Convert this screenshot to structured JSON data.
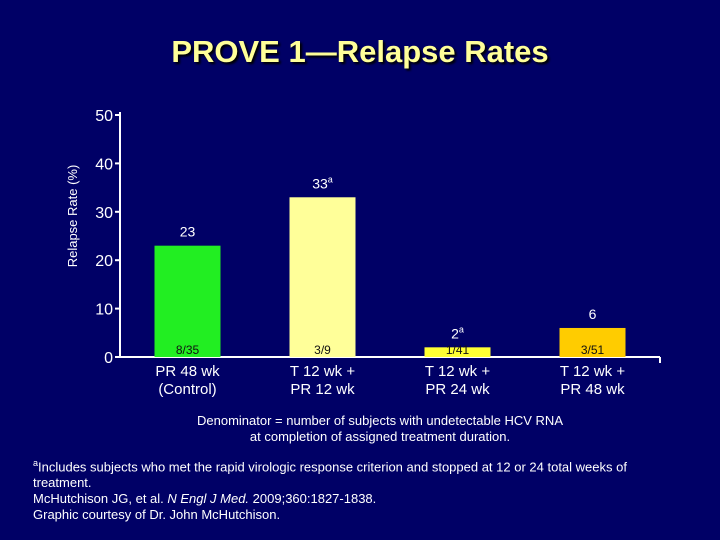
{
  "slide": {
    "title": "PROVE 1—Relapse Rates"
  },
  "chart_data": {
    "type": "bar",
    "ylabel": "Relapse Rate (%)",
    "xlabel": "",
    "ylim": [
      0,
      50
    ],
    "yticks": [
      0,
      10,
      20,
      30,
      40,
      50
    ],
    "grid": false,
    "categories": [
      [
        "PR 48 wk",
        "(Control)"
      ],
      [
        "T 12 wk +",
        "PR 12 wk"
      ],
      [
        "T 12 wk +",
        "PR 24 wk"
      ],
      [
        "T 12 wk +",
        "PR 48 wk"
      ]
    ],
    "values": [
      23,
      33,
      2,
      6
    ],
    "value_labels": [
      "23",
      "33",
      "2",
      "6"
    ],
    "value_label_superscripts": [
      "",
      "a",
      "a",
      ""
    ],
    "fractions": [
      "8/35",
      "3/9",
      "1/41",
      "3/51"
    ],
    "colors": [
      "#22ee22",
      "#ffff99",
      "#ffff33",
      "#ffcc00"
    ]
  },
  "notes": {
    "denominator_line1": "Denominator = number of subjects with undetectable HCV RNA",
    "denominator_line2": "at completion of assigned treatment duration.",
    "footnote_marker": "a",
    "footnote_text": "Includes subjects who met the rapid virologic response criterion and stopped at 12 or 24 total weeks of treatment.",
    "citation_authors": "McHutchison JG, et al. ",
    "citation_journal": "N Engl J Med.",
    "citation_details": " 2009;360:1827-1838.",
    "courtesy": "Graphic courtesy of Dr. John McHutchison."
  }
}
